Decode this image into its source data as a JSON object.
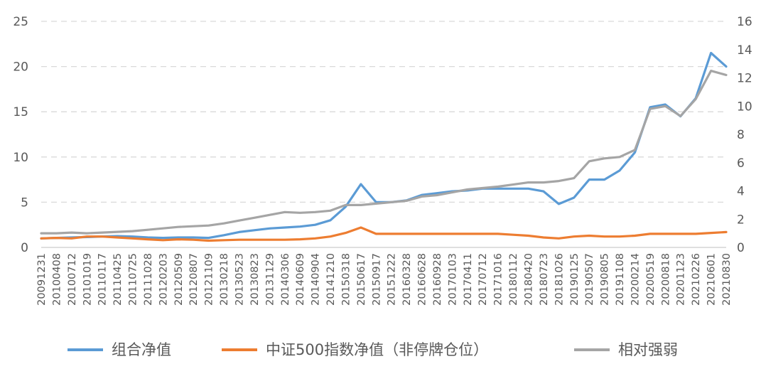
{
  "chart_data": {
    "type": "line",
    "title": "",
    "xlabel": "",
    "ylabel": "",
    "y_left_lim": [
      0,
      25
    ],
    "y_left_ticks": [
      0,
      5,
      10,
      15,
      20,
      25
    ],
    "y_right_lim": [
      0,
      16
    ],
    "y_right_ticks": [
      0,
      2,
      4,
      6,
      8,
      10,
      12,
      14,
      16
    ],
    "grid": "horizontal dashed",
    "legend_position": "bottom",
    "x_tick_labels": [
      "20091231",
      "20100408",
      "20100712",
      "20101019",
      "20110117",
      "20110425",
      "20110725",
      "20111028",
      "20120203",
      "20120509",
      "20120807",
      "20121109",
      "20130218",
      "20130523",
      "20130823",
      "20131129",
      "20140306",
      "20140609",
      "20140904",
      "20141210",
      "20150318",
      "20150617",
      "20150917",
      "20151222",
      "20160328",
      "20160628",
      "20160928",
      "20170103",
      "20170411",
      "20170712",
      "20171016",
      "20180112",
      "20180420",
      "20180723",
      "20181026",
      "20190125",
      "20190507",
      "20190805",
      "20191108",
      "20200214",
      "20200519",
      "20200818",
      "20201123",
      "20210226",
      "20210601",
      "20210830"
    ],
    "series": [
      {
        "name": "组合净值",
        "axis": "left",
        "color": "#5B9BD5",
        "values": [
          1.0,
          1.05,
          1.1,
          1.15,
          1.2,
          1.25,
          1.2,
          1.1,
          1.05,
          1.1,
          1.1,
          1.05,
          1.35,
          1.7,
          1.9,
          2.1,
          2.2,
          2.3,
          2.5,
          3.0,
          4.5,
          7.0,
          5.0,
          5.0,
          5.2,
          5.8,
          6.0,
          6.2,
          6.3,
          6.5,
          6.5,
          6.5,
          6.5,
          6.2,
          4.8,
          5.5,
          7.5,
          7.5,
          8.5,
          10.5,
          15.5,
          15.8,
          14.5,
          16.5,
          21.5,
          20.0
        ]
      },
      {
        "name": "中证500指数净值（非停牌仓位）",
        "axis": "left",
        "color": "#ED7D31",
        "values": [
          1.0,
          1.05,
          1.0,
          1.2,
          1.2,
          1.1,
          1.0,
          0.9,
          0.8,
          0.9,
          0.85,
          0.75,
          0.8,
          0.85,
          0.85,
          0.85,
          0.85,
          0.9,
          1.0,
          1.2,
          1.6,
          2.2,
          1.5,
          1.5,
          1.5,
          1.5,
          1.5,
          1.5,
          1.5,
          1.5,
          1.5,
          1.4,
          1.3,
          1.1,
          1.0,
          1.2,
          1.3,
          1.2,
          1.2,
          1.3,
          1.5,
          1.5,
          1.5,
          1.5,
          1.6,
          1.7
        ]
      },
      {
        "name": "相对强弱",
        "axis": "right",
        "color": "#A5A5A5",
        "values": [
          1.0,
          1.0,
          1.05,
          1.0,
          1.05,
          1.1,
          1.15,
          1.25,
          1.35,
          1.45,
          1.5,
          1.55,
          1.7,
          1.9,
          2.1,
          2.3,
          2.5,
          2.45,
          2.5,
          2.6,
          3.0,
          3.0,
          3.1,
          3.2,
          3.3,
          3.6,
          3.7,
          3.9,
          4.1,
          4.2,
          4.3,
          4.45,
          4.6,
          4.6,
          4.7,
          4.9,
          6.1,
          6.3,
          6.4,
          6.9,
          9.8,
          10.0,
          9.3,
          10.5,
          12.5,
          12.2
        ]
      }
    ]
  }
}
